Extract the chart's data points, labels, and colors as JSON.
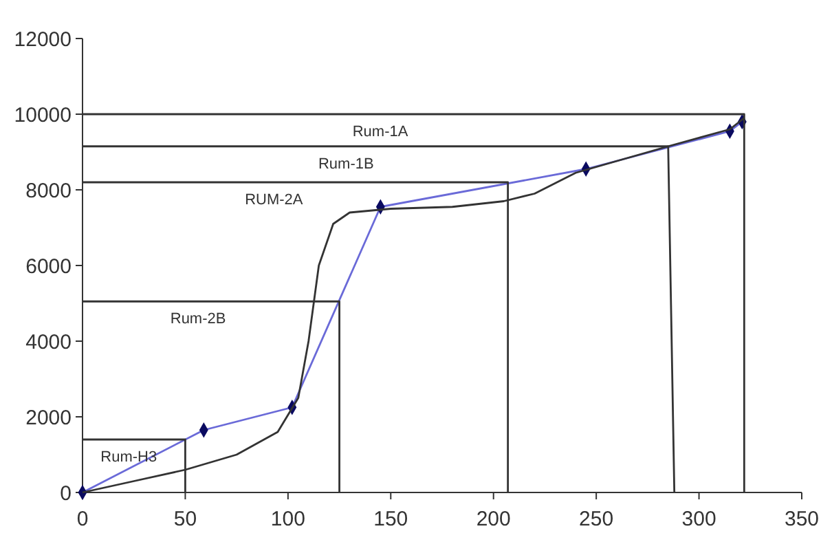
{
  "chart_data": {
    "type": "line",
    "xlim": [
      0,
      350
    ],
    "xticks": [
      0,
      50,
      100,
      150,
      200,
      250,
      300,
      350
    ],
    "ylim": [
      0,
      12000
    ],
    "yticks": [
      0,
      2000,
      4000,
      6000,
      8000,
      10000,
      12000
    ],
    "grid": false,
    "series": [
      {
        "color": "#6a6ad8",
        "marker": "diamond",
        "x": [
          0,
          59,
          102,
          145,
          245,
          315,
          321
        ],
        "values": [
          0,
          1650,
          2250,
          7550,
          8550,
          9550,
          9800
        ]
      },
      {
        "color": "#333333",
        "marker": "none",
        "x": [
          0,
          25,
          50,
          75,
          95,
          105,
          110,
          115,
          122,
          130,
          150,
          180,
          205,
          220,
          240,
          285,
          315,
          322
        ],
        "values": [
          0,
          300,
          600,
          1000,
          1600,
          2500,
          4000,
          6000,
          7100,
          7400,
          7500,
          7550,
          7700,
          7900,
          8450,
          9150,
          9600,
          9900
        ]
      },
      {
        "name": "Rum-H3",
        "color": "#333333",
        "marker": "none",
        "x": [
          0,
          50,
          50
        ],
        "values": [
          1400,
          1400,
          0
        ]
      },
      {
        "name": "Rum-2B",
        "color": "#333333",
        "marker": "none",
        "x": [
          0,
          125,
          125
        ],
        "values": [
          5050,
          5050,
          0
        ]
      },
      {
        "name": "RUM-2A",
        "color": "#333333",
        "marker": "none",
        "x": [
          0,
          207,
          207
        ],
        "values": [
          8200,
          8200,
          0
        ]
      },
      {
        "name": "Rum-1B",
        "color": "#333333",
        "marker": "none",
        "x": [
          0,
          285,
          288
        ],
        "values": [
          9150,
          9150,
          0
        ]
      },
      {
        "name": "Rum-1A",
        "color": "#333333",
        "marker": "none",
        "x": [
          0,
          322,
          322
        ],
        "values": [
          10000,
          10000,
          0
        ]
      }
    ]
  }
}
